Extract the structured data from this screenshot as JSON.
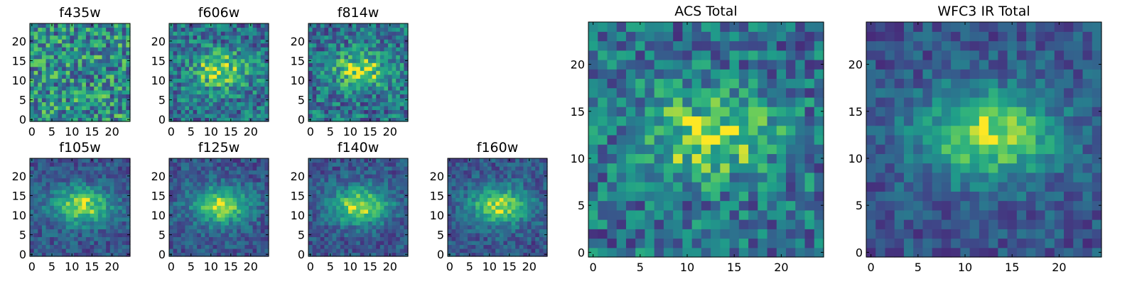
{
  "chart_data": [
    {
      "type": "heatmap",
      "title": "f435w",
      "xticks": [
        0,
        5,
        10,
        15,
        20
      ],
      "yticks": [
        0,
        5,
        10,
        15,
        20
      ],
      "xlim": [
        0,
        25
      ],
      "ylim": [
        0,
        25
      ],
      "grid": false,
      "colormap": "viridis",
      "pattern": "noise"
    },
    {
      "type": "heatmap",
      "title": "f606w",
      "xticks": [
        0,
        5,
        10,
        15,
        20
      ],
      "yticks": [
        0,
        5,
        10,
        15,
        20
      ],
      "xlim": [
        0,
        25
      ],
      "ylim": [
        0,
        25
      ],
      "grid": false,
      "colormap": "viridis",
      "pattern": "blob-noisy"
    },
    {
      "type": "heatmap",
      "title": "f814w",
      "xticks": [
        0,
        5,
        10,
        15,
        20
      ],
      "yticks": [
        0,
        5,
        10,
        15,
        20
      ],
      "xlim": [
        0,
        25
      ],
      "ylim": [
        0,
        25
      ],
      "grid": false,
      "colormap": "viridis",
      "pattern": "blob-noisy"
    },
    {
      "type": "heatmap",
      "title": "f105w",
      "xticks": [
        0,
        5,
        10,
        15,
        20
      ],
      "yticks": [
        0,
        5,
        10,
        15,
        20
      ],
      "xlim": [
        0,
        25
      ],
      "ylim": [
        0,
        25
      ],
      "grid": false,
      "colormap": "viridis",
      "pattern": "blob-smooth"
    },
    {
      "type": "heatmap",
      "title": "f125w",
      "xticks": [
        0,
        5,
        10,
        15,
        20
      ],
      "yticks": [
        0,
        5,
        10,
        15,
        20
      ],
      "xlim": [
        0,
        25
      ],
      "ylim": [
        0,
        25
      ],
      "grid": false,
      "colormap": "viridis",
      "pattern": "blob-smooth"
    },
    {
      "type": "heatmap",
      "title": "f140w",
      "xticks": [
        0,
        5,
        10,
        15,
        20
      ],
      "yticks": [
        0,
        5,
        10,
        15,
        20
      ],
      "xlim": [
        0,
        25
      ],
      "ylim": [
        0,
        25
      ],
      "grid": false,
      "colormap": "viridis",
      "pattern": "blob-smooth"
    },
    {
      "type": "heatmap",
      "title": "f160w",
      "xticks": [
        0,
        5,
        10,
        15,
        20
      ],
      "yticks": [
        0,
        5,
        10,
        15,
        20
      ],
      "xlim": [
        0,
        25
      ],
      "ylim": [
        0,
        25
      ],
      "grid": false,
      "colormap": "viridis",
      "pattern": "blob-smooth"
    },
    {
      "type": "heatmap",
      "title": "ACS Total",
      "xticks": [
        0,
        5,
        10,
        15,
        20
      ],
      "yticks": [
        0,
        5,
        10,
        15,
        20
      ],
      "xlim": [
        0,
        25
      ],
      "ylim": [
        0,
        25
      ],
      "grid": false,
      "colormap": "viridis",
      "pattern": "blob-noisy"
    },
    {
      "type": "heatmap",
      "title": "WFC3 IR Total",
      "xticks": [
        0,
        5,
        10,
        15,
        20
      ],
      "yticks": [
        0,
        5,
        10,
        15,
        20
      ],
      "xlim": [
        0,
        25
      ],
      "ylim": [
        0,
        25
      ],
      "grid": false,
      "colormap": "viridis",
      "pattern": "blob-smooth"
    }
  ]
}
